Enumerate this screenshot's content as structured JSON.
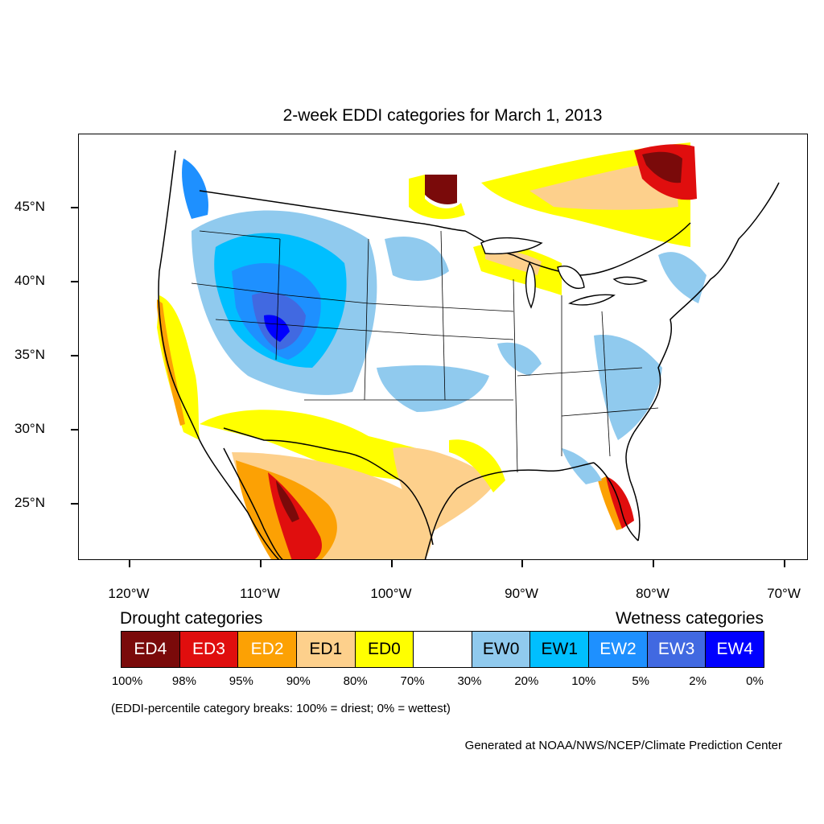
{
  "title": "2-week EDDI categories for March 1, 2013",
  "lat_labels": [
    "45°N",
    "40°N",
    "35°N",
    "30°N",
    "25°N"
  ],
  "lon_labels": [
    "120°W",
    "110°W",
    "100°W",
    "90°W",
    "80°W",
    "70°W"
  ],
  "legend": {
    "drought_heading": "Drought categories",
    "wetness_heading": "Wetness categories",
    "categories": [
      {
        "label": "ED4",
        "color": "#7a0a0a",
        "text_color": "#ffffff"
      },
      {
        "label": "ED3",
        "color": "#e00e0e",
        "text_color": "#ffffff"
      },
      {
        "label": "ED2",
        "color": "#fca104",
        "text_color": "#ffffff"
      },
      {
        "label": "ED1",
        "color": "#fdd08c",
        "text_color": "#000000"
      },
      {
        "label": "ED0",
        "color": "#ffff00",
        "text_color": "#000000"
      },
      {
        "label": "",
        "color": "#ffffff",
        "text_color": "#000000"
      },
      {
        "label": "EW0",
        "color": "#90caee",
        "text_color": "#000000"
      },
      {
        "label": "EW1",
        "color": "#00bfff",
        "text_color": "#000000"
      },
      {
        "label": "EW2",
        "color": "#1e90ff",
        "text_color": "#ffffff"
      },
      {
        "label": "EW3",
        "color": "#4169e1",
        "text_color": "#ffffff"
      },
      {
        "label": "EW4",
        "color": "#0000ff",
        "text_color": "#ffffff"
      }
    ],
    "percentiles": [
      "100%",
      "98%",
      "95%",
      "90%",
      "80%",
      "70%",
      "30%",
      "20%",
      "10%",
      "5%",
      "2%",
      "0%"
    ]
  },
  "note": "(EDDI-percentile category breaks: 100% = driest; 0% = wettest)",
  "credit": "Generated at NOAA/NWS/NCEP/Climate Prediction Center"
}
